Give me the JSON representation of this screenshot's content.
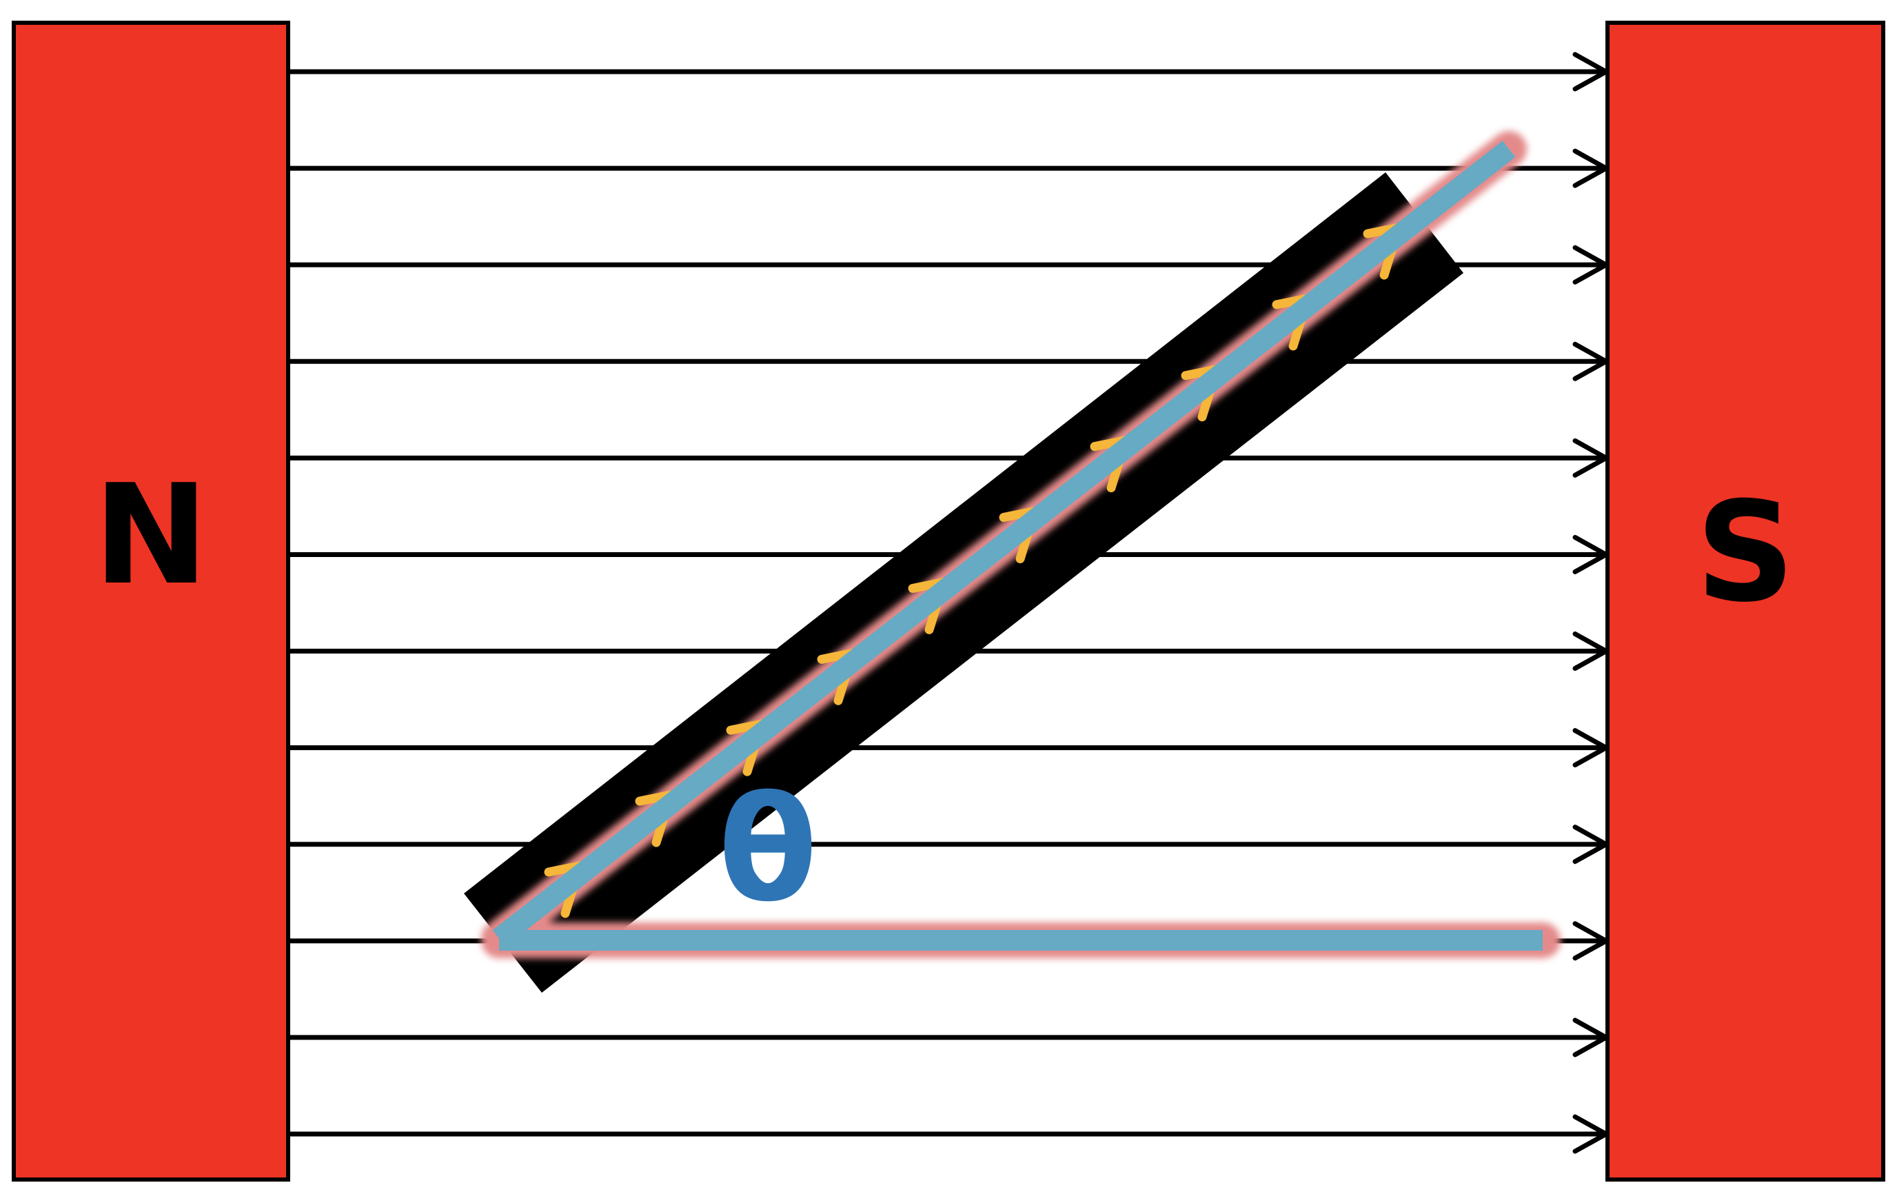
{
  "magnets": {
    "north": {
      "label": "N",
      "color": "#ee3424"
    },
    "south": {
      "label": "S",
      "color": "#ee3424"
    }
  },
  "field": {
    "line_count": 12,
    "line_color": "#000000"
  },
  "conductor": {
    "bar_color": "#000000",
    "stripe_color": "#66aac4",
    "glow_color": "#e48a8a",
    "tick_color": "#f5b63a",
    "tick_count": 10
  },
  "angle": {
    "label": "θ",
    "color": "#2e75b6"
  }
}
